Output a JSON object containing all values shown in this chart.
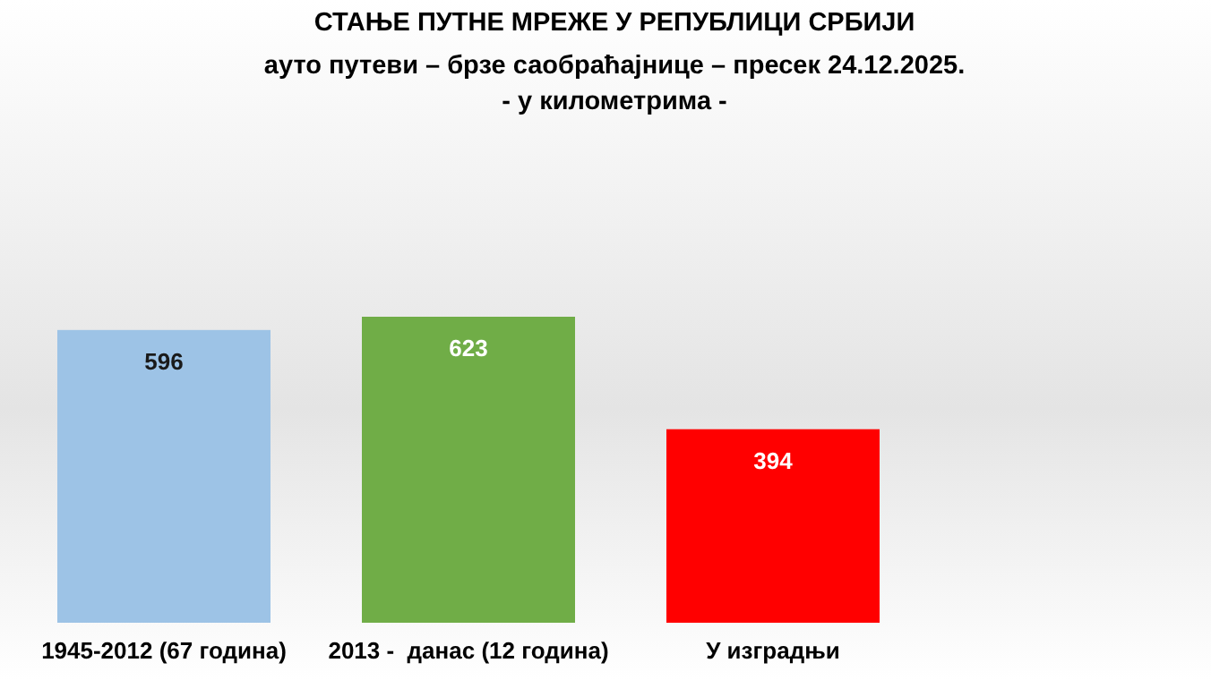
{
  "chart_data": {
    "type": "bar",
    "title": "СТАЊЕ ПУТНЕ МРЕЖЕ У РЕПУБЛИЦИ СРБИЈИ",
    "subtitle": "ауто путеви – брзе саобраћајнице – пресек 24.12.2025.\n- у километрима -",
    "categories": [
      "1945-2012 (67 година)",
      "2013 -  данас (12 година)",
      "У изградњи"
    ],
    "values": [
      596,
      623,
      394
    ],
    "colors": [
      "#9dc3e6",
      "#70ad47",
      "#ff0000"
    ],
    "data_labels": true
  }
}
